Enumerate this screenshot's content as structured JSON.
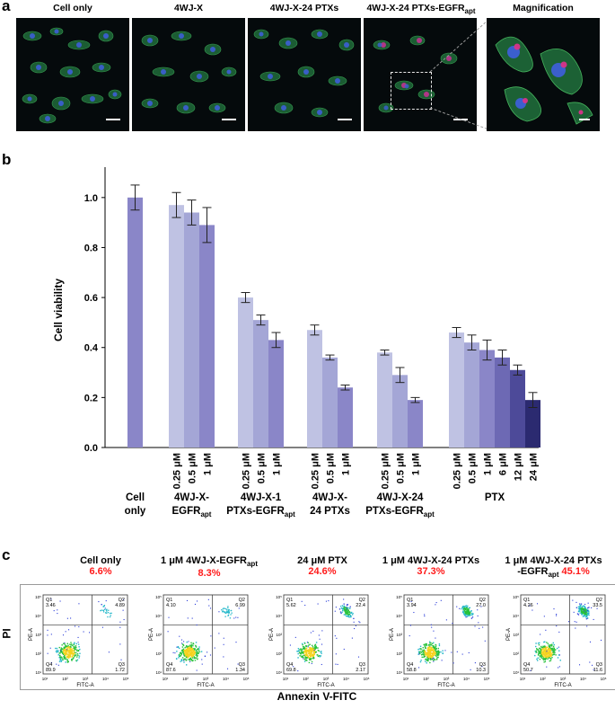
{
  "panel_a": {
    "label": "a",
    "images": [
      {
        "title": "Cell only"
      },
      {
        "title": "4WJ-X"
      },
      {
        "title": "4WJ-X-24 PTXs"
      },
      {
        "title": "4WJ-X-24 PTXs-EGFR",
        "title_sub": "apt"
      },
      {
        "title": "Magnification"
      }
    ]
  },
  "panel_b": {
    "label": "b",
    "chart_data": {
      "type": "bar",
      "ylabel": "Cell viability",
      "ylim": [
        0,
        1.1
      ],
      "yticks": [
        "0.0",
        "0.2",
        "0.4",
        "0.6",
        "0.8",
        "1.0"
      ],
      "groups": [
        {
          "name_lines": [
            "Cell",
            "only"
          ],
          "doses": [
            ""
          ],
          "values": [
            1.0
          ],
          "errors": [
            0.05
          ],
          "colors": [
            "#8a86c8"
          ]
        },
        {
          "name_lines": [
            "4WJ-X-",
            "EGFR|apt"
          ],
          "doses": [
            "0.25 μM",
            "0.5 μM",
            "1 μM"
          ],
          "values": [
            0.97,
            0.94,
            0.89
          ],
          "errors": [
            0.05,
            0.05,
            0.07
          ],
          "colors": [
            "#bfc2e3",
            "#a4a6d6",
            "#8a86c8"
          ]
        },
        {
          "name_lines": [
            "4WJ-X-1",
            "PTXs-EGFR|apt"
          ],
          "doses": [
            "0.25 μM",
            "0.5 μM",
            "1 μM"
          ],
          "values": [
            0.6,
            0.51,
            0.43
          ],
          "errors": [
            0.02,
            0.02,
            0.03
          ],
          "colors": [
            "#bfc2e3",
            "#a4a6d6",
            "#8a86c8"
          ]
        },
        {
          "name_lines": [
            "4WJ-X-",
            "24 PTXs"
          ],
          "doses": [
            "0.25 μM",
            "0.5 μM",
            "1 μM"
          ],
          "values": [
            0.47,
            0.36,
            0.24
          ],
          "errors": [
            0.02,
            0.01,
            0.01
          ],
          "colors": [
            "#bfc2e3",
            "#a4a6d6",
            "#8a86c8"
          ]
        },
        {
          "name_lines": [
            "4WJ-X-24",
            "PTXs-EGFR|apt"
          ],
          "doses": [
            "0.25 μM",
            "0.5 μM",
            "1 μM"
          ],
          "values": [
            0.38,
            0.29,
            0.19
          ],
          "errors": [
            0.01,
            0.03,
            0.01
          ],
          "colors": [
            "#bfc2e3",
            "#a4a6d6",
            "#8a86c8"
          ]
        },
        {
          "name_lines": [
            "PTX",
            ""
          ],
          "doses": [
            "0.25 μM",
            "0.5 μM",
            "1 μM",
            "6 μM",
            "12 μM",
            "24 μM"
          ],
          "values": [
            0.46,
            0.42,
            0.39,
            0.36,
            0.31,
            0.19
          ],
          "errors": [
            0.02,
            0.03,
            0.04,
            0.03,
            0.02,
            0.03
          ],
          "colors": [
            "#bfc2e3",
            "#a4a6d6",
            "#8a86c8",
            "#6d69b4",
            "#4d4a99",
            "#2b2a70"
          ]
        }
      ]
    }
  },
  "panel_c": {
    "label": "c",
    "xlabel": "Annexin V-FITC",
    "ylabel": "PI",
    "plots": [
      {
        "title": "Cell only",
        "title_sub": "",
        "title_pre": "",
        "pct": "6.6%",
        "q1": "3.46",
        "q2": "4.89",
        "q3": "1.72",
        "q4": "89.9"
      },
      {
        "title": "1 μM 4WJ-X-EGFR",
        "title_sub": "apt",
        "title_pre": "",
        "pct": "8.3%",
        "q1": "4.10",
        "q2": "6.99",
        "q3": "1.34",
        "q4": "87.6"
      },
      {
        "title": "24 μM PTX",
        "title_sub": "",
        "title_pre": "",
        "pct": "24.6%",
        "q1": "5.62",
        "q2": "22.4",
        "q3": "2.17",
        "q4": "69.8"
      },
      {
        "title": "1 μM 4WJ-X-24 PTXs",
        "title_sub": "",
        "title_pre": "",
        "pct": "37.3%",
        "q1": "3.94",
        "q2": "27.0",
        "q3": "10.3",
        "q4": "58.8"
      },
      {
        "title": "-EGFR",
        "title_sub": "apt",
        "title_pre": "1 μM 4WJ-X-24 PTXs",
        "pct": "45.1%",
        "q1": "4.26",
        "q2": "33.5",
        "q3": "11.6",
        "q4": "50.7"
      }
    ],
    "axis": {
      "x": "FITC-A",
      "y": "PE-A",
      "q_labels": [
        "Q1",
        "Q2",
        "Q3",
        "Q4"
      ],
      "ticks": [
        "10¹",
        "10²",
        "10³",
        "10⁴",
        "10⁵"
      ]
    }
  }
}
